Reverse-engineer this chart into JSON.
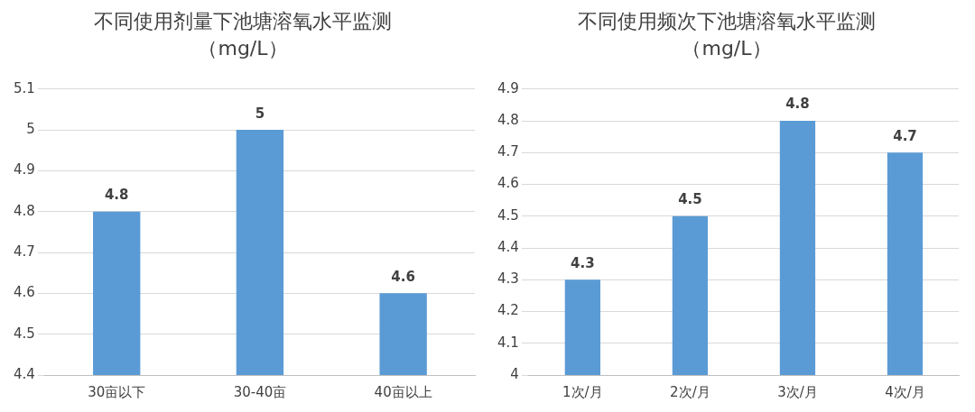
{
  "chart_data": [
    {
      "type": "bar",
      "title": "不同使用剂量下池塘溶氧水平监测",
      "subtitle": "（mg/L）",
      "categories": [
        "30亩以下",
        "30-40亩",
        "40亩以上"
      ],
      "values": [
        4.8,
        5,
        4.6
      ],
      "color": "#5b9bd5",
      "ylim": [
        4.4,
        5.1
      ],
      "yticks": [
        4.4,
        4.5,
        4.6,
        4.7,
        4.8,
        4.9,
        5,
        5.1
      ],
      "grid": "y",
      "data_labels": true
    },
    {
      "type": "bar",
      "title": "不同使用频次下池塘溶氧水平监测",
      "subtitle": "（mg/L）",
      "categories": [
        "1次/月",
        "2次/月",
        "3次/月",
        "4次/月"
      ],
      "values": [
        4.3,
        4.5,
        4.8,
        4.7
      ],
      "color": "#5b9bd5",
      "ylim": [
        4,
        4.9
      ],
      "yticks": [
        4,
        4.1,
        4.2,
        4.3,
        4.4,
        4.5,
        4.6,
        4.7,
        4.8,
        4.9
      ],
      "grid": "y",
      "data_labels": true
    }
  ]
}
